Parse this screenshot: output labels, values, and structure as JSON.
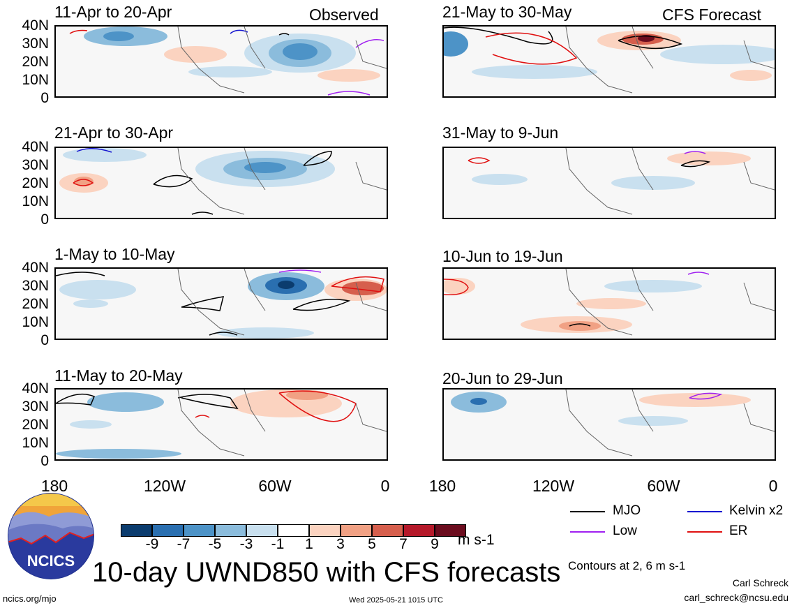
{
  "observed_label": "Observed",
  "forecast_label": "CFS Forecast",
  "lat_labels": [
    "40N",
    "30N",
    "20N",
    "10N",
    "0"
  ],
  "lon_labels": [
    "180",
    "120W",
    "60W",
    "0"
  ],
  "panels_left": [
    {
      "title": "11-Apr to 20-Apr"
    },
    {
      "title": "21-Apr to 30-Apr"
    },
    {
      "title": "1-May to 10-May"
    },
    {
      "title": "11-May to 20-May"
    }
  ],
  "panels_right": [
    {
      "title": "21-May to 30-May"
    },
    {
      "title": "31-May to 9-Jun"
    },
    {
      "title": "10-Jun to 19-Jun"
    },
    {
      "title": "20-Jun to 29-Jun"
    }
  ],
  "colorbar": {
    "labels": [
      "-9",
      "-7",
      "-5",
      "-3",
      "-1",
      "1",
      "3",
      "5",
      "7",
      "9"
    ],
    "colors": [
      "#0b3c6e",
      "#2a6fb0",
      "#4d93c7",
      "#8bbcdc",
      "#c9e0ef",
      "#ffffff",
      "#fbd3c0",
      "#f1a184",
      "#d65f4d",
      "#b5192a",
      "#6b0c1e"
    ],
    "units": "m s-1"
  },
  "legend": {
    "mjo": {
      "label": "MJO",
      "color": "#000000"
    },
    "kelvin": {
      "label": "Kelvin x2",
      "color": "#1515d0"
    },
    "low": {
      "label": "Low",
      "color": "#a020f0"
    },
    "er": {
      "label": "ER",
      "color": "#e01010"
    },
    "contours_note": "Contours at 2, 6 m s-1"
  },
  "logo_text": "NCICS",
  "main_title": "10-day UWND850 with CFS forecasts",
  "footer": {
    "url": "ncics.org/mjo",
    "timestamp": "Wed 2025-05-21 1015 UTC",
    "author": "Carl Schreck",
    "email": "carl_schreck@ncsu.edu"
  }
}
